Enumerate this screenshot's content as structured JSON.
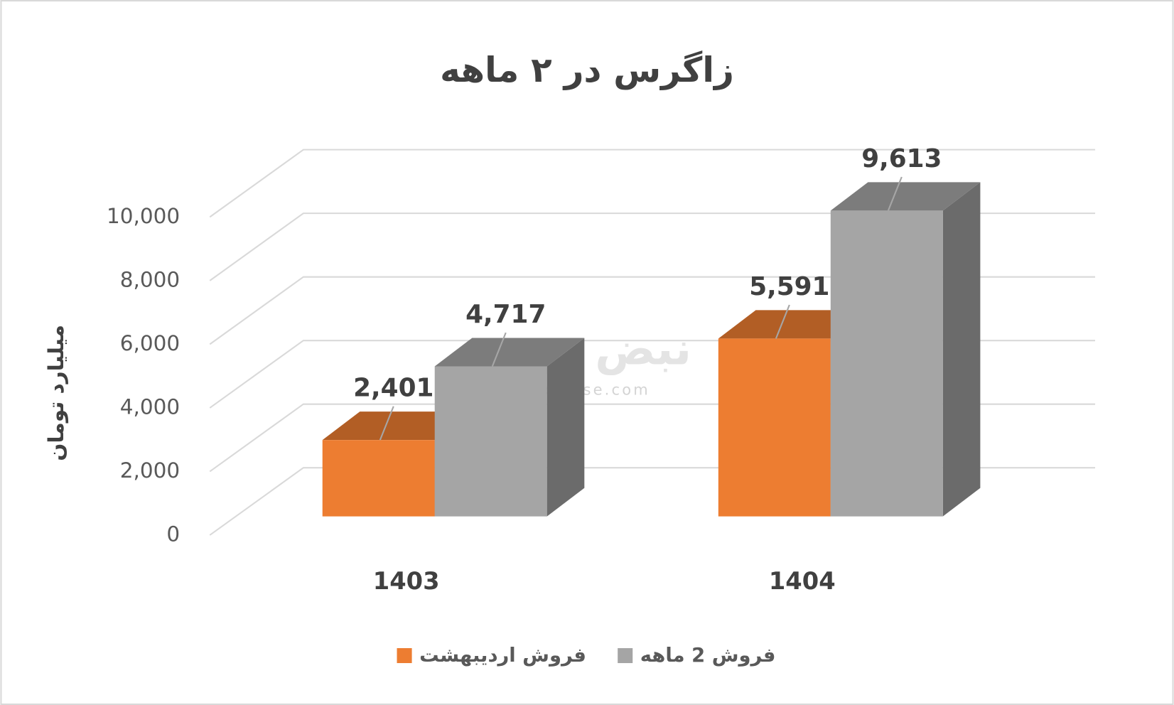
{
  "chart_data": {
    "type": "bar3d",
    "title": "زاگرس در ۲ ماهه",
    "y_label": "میلیارد تومان",
    "categories": [
      "1403",
      "1404"
    ],
    "series": [
      {
        "name": "فروش اردیبهشت",
        "color": "#ED7D31",
        "values": [
          2401,
          5591
        ],
        "value_labels": [
          "2,401",
          "5,591"
        ]
      },
      {
        "name": "فروش 2 ماهه",
        "color": "#A5A5A5",
        "values": [
          4717,
          9613
        ],
        "value_labels": [
          "4,717",
          "9,613"
        ]
      }
    ],
    "ylim": [
      0,
      10000
    ],
    "yticks": [
      0,
      {
        "value": 2000,
        "label": "2,000"
      },
      {
        "value": 4000,
        "label": "4,000"
      },
      {
        "value": 6000,
        "label": "6,000"
      },
      {
        "value": 8000,
        "label": "8,000"
      },
      {
        "value": 10000,
        "label": "10,000"
      }
    ],
    "grid": true,
    "legend": "bottom",
    "watermark_logo": "نبض بورس",
    "watermark_url": "nabzebourse.com"
  }
}
